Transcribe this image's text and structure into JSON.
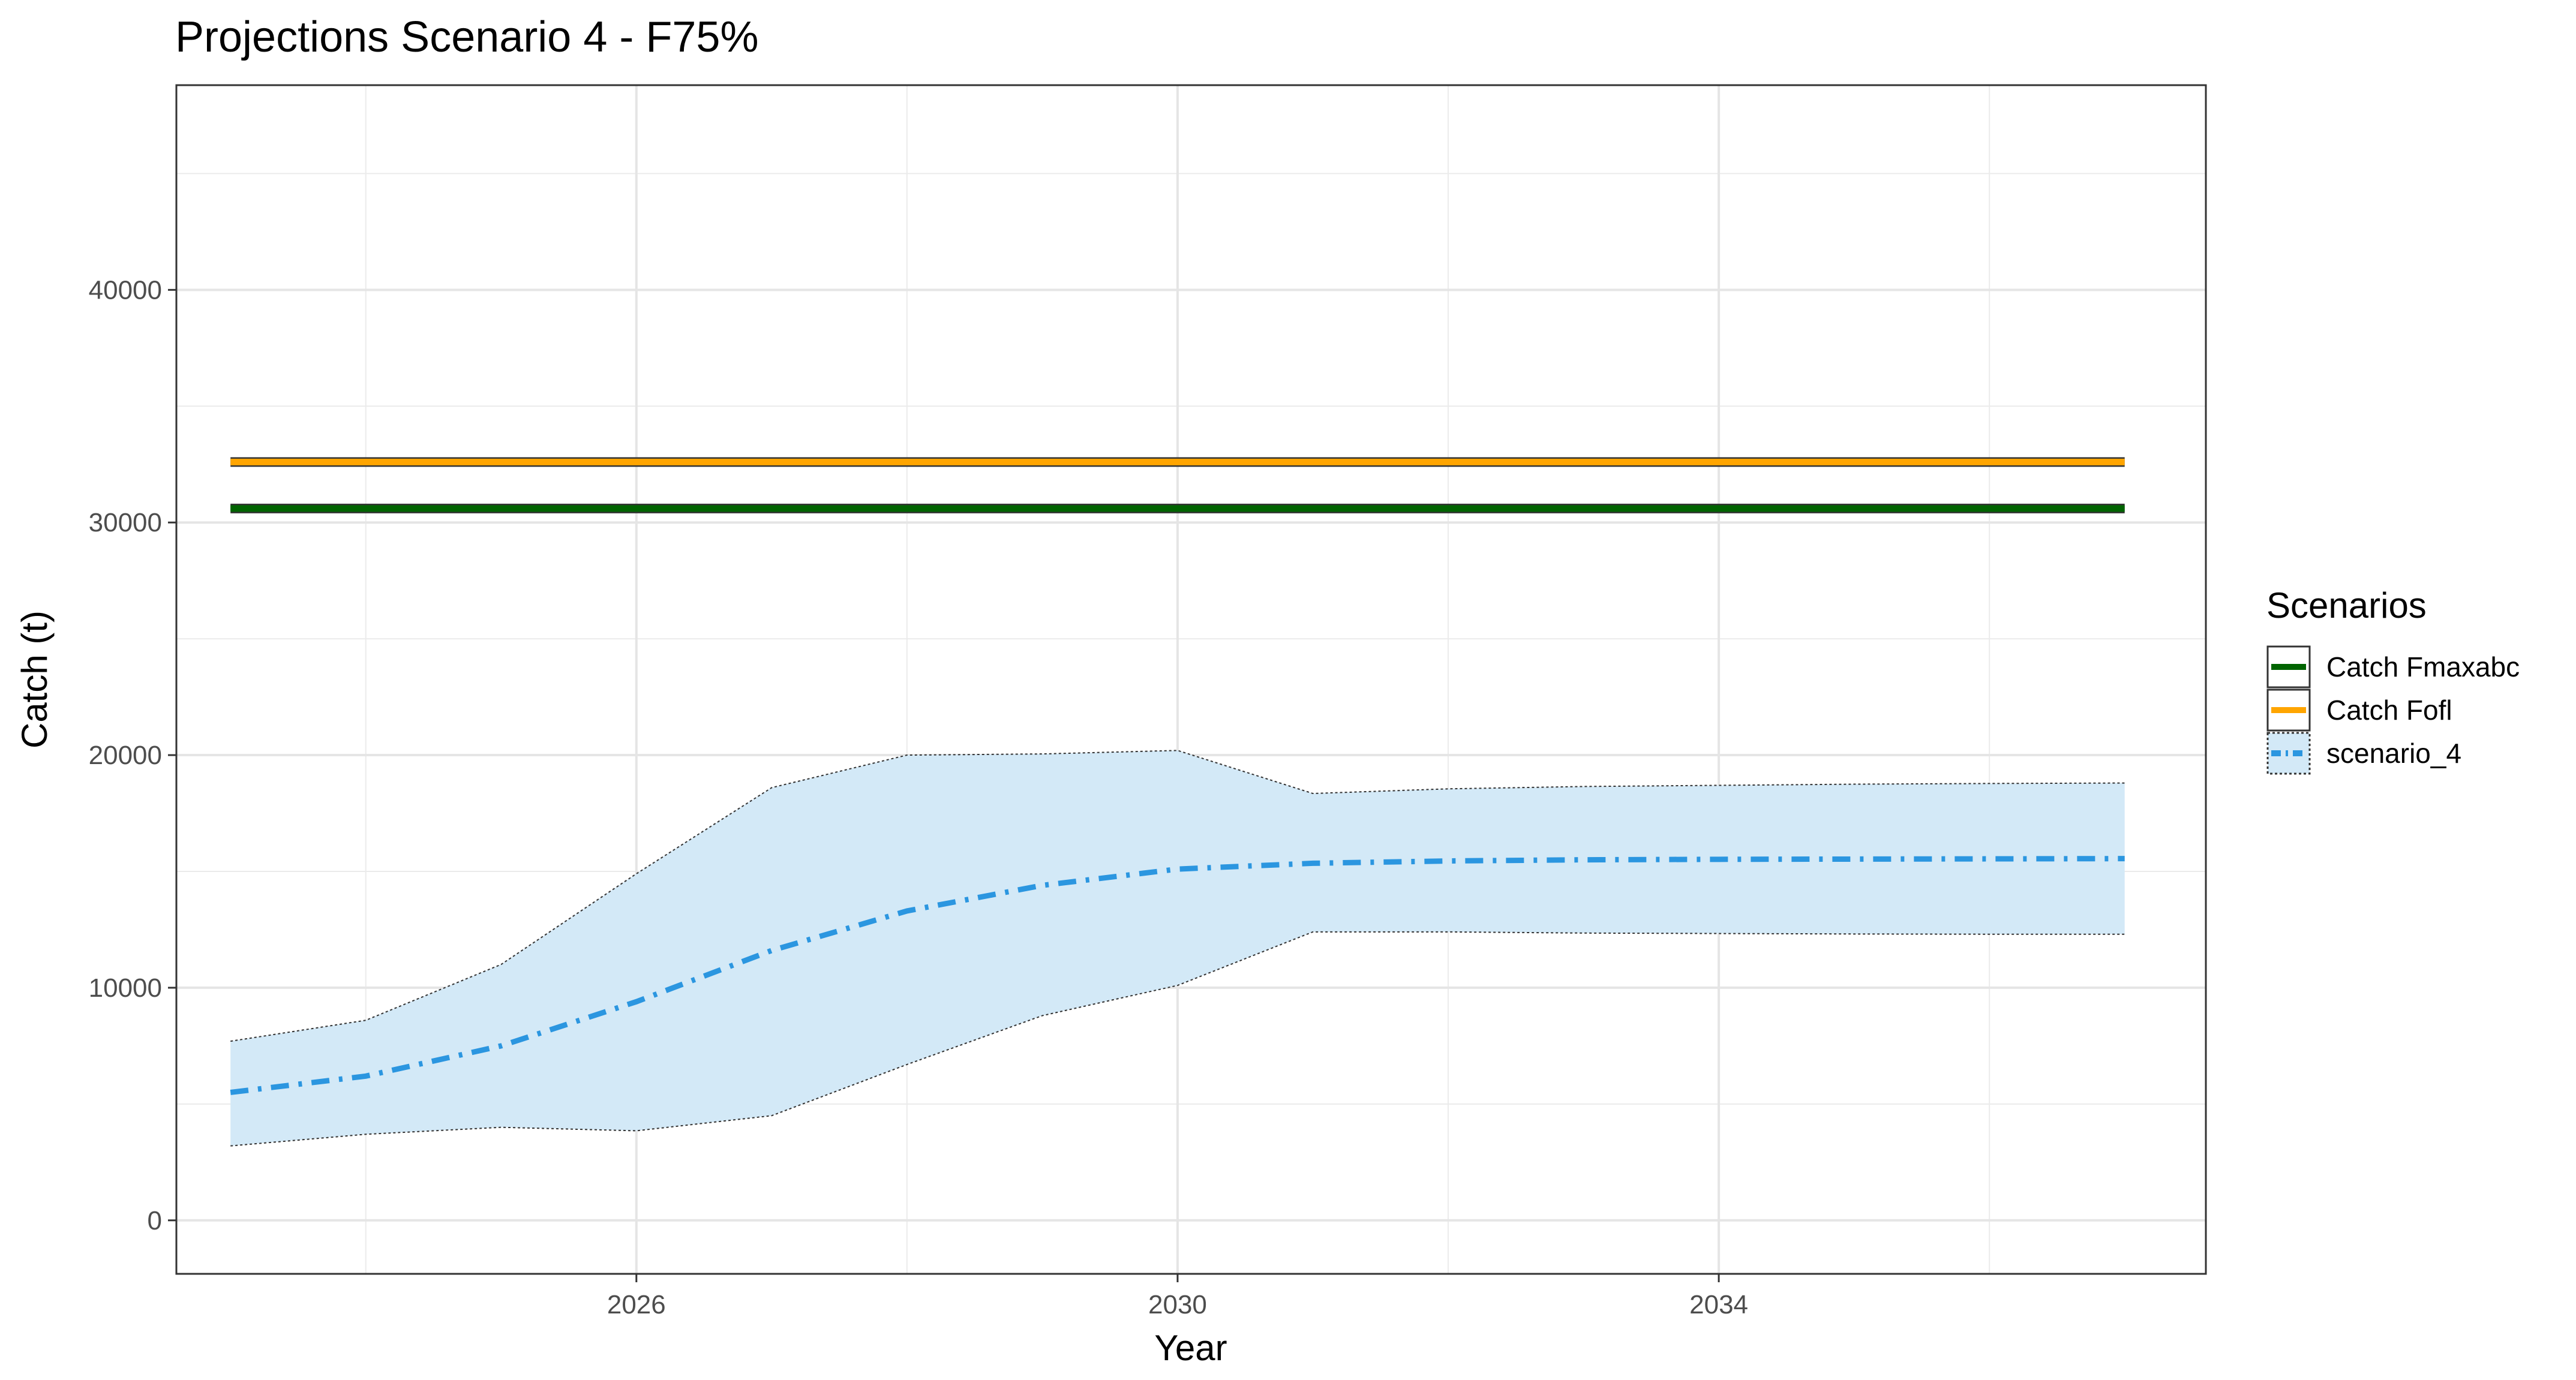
{
  "chart_data": {
    "type": "line",
    "title": "Projections Scenario 4 - F75%",
    "xlabel": "Year",
    "ylabel": "Catch (t)",
    "xlim": [
      2022.6,
      2037.6
    ],
    "ylim": [
      -2300,
      48800
    ],
    "x_ticks": [
      2026,
      2030,
      2034
    ],
    "x_tick_labels": [
      "2026",
      "2030",
      "2034"
    ],
    "y_ticks": [
      0,
      10000,
      20000,
      30000,
      40000
    ],
    "y_tick_labels": [
      "0",
      "10000",
      "20000",
      "30000",
      "40000"
    ],
    "grid": true,
    "legend_title": "Scenarios",
    "legend_position": "right",
    "series": [
      {
        "name": "Catch Fmaxabc",
        "color": "#006400",
        "style": "solid",
        "x": [
          2023,
          2037
        ],
        "values": [
          30600,
          30600
        ]
      },
      {
        "name": "Catch Fofl",
        "color": "#FFA500",
        "style": "solid",
        "x": [
          2023,
          2037
        ],
        "values": [
          32600,
          32600
        ]
      },
      {
        "name": "scenario_4",
        "color": "#2B96E0",
        "fill": "#D3E9F7",
        "style": "dashdot",
        "x": [
          2023,
          2024,
          2025,
          2026,
          2027,
          2028,
          2029,
          2030,
          2031,
          2032,
          2033,
          2034,
          2035,
          2036,
          2037
        ],
        "values": [
          5500,
          6200,
          7500,
          9400,
          11600,
          13300,
          14400,
          15100,
          15350,
          15450,
          15500,
          15520,
          15530,
          15540,
          15550
        ],
        "lower": [
          3200,
          3700,
          4000,
          3850,
          4500,
          6700,
          8800,
          10100,
          12400,
          12400,
          12350,
          12330,
          12310,
          12300,
          12300
        ],
        "upper": [
          7700,
          8600,
          11000,
          14900,
          18600,
          20000,
          20050,
          20200,
          18350,
          18550,
          18650,
          18700,
          18750,
          18780,
          18800
        ]
      }
    ]
  }
}
